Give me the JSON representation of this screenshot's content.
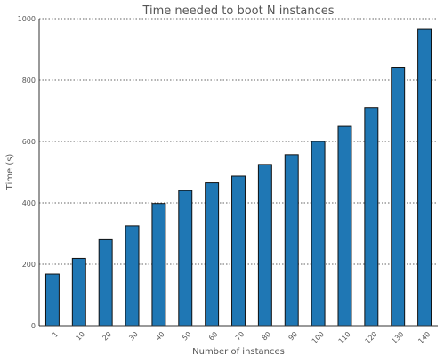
{
  "chart_data": {
    "type": "bar",
    "title": "Time needed to boot N instances",
    "xlabel": "Number of instances",
    "ylabel": "Time (s)",
    "categories": [
      "1",
      "10",
      "20",
      "30",
      "40",
      "50",
      "60",
      "70",
      "80",
      "90",
      "100",
      "110",
      "120",
      "130",
      "140"
    ],
    "values": [
      168,
      219,
      280,
      325,
      398,
      440,
      465,
      487,
      525,
      557,
      600,
      649,
      711,
      842,
      965
    ],
    "ylim": [
      0,
      1000
    ],
    "yticks": [
      "0",
      "200",
      "400",
      "600",
      "800",
      "1000"
    ],
    "grid": "y-dotted",
    "bar_color": "#1f77b4"
  }
}
